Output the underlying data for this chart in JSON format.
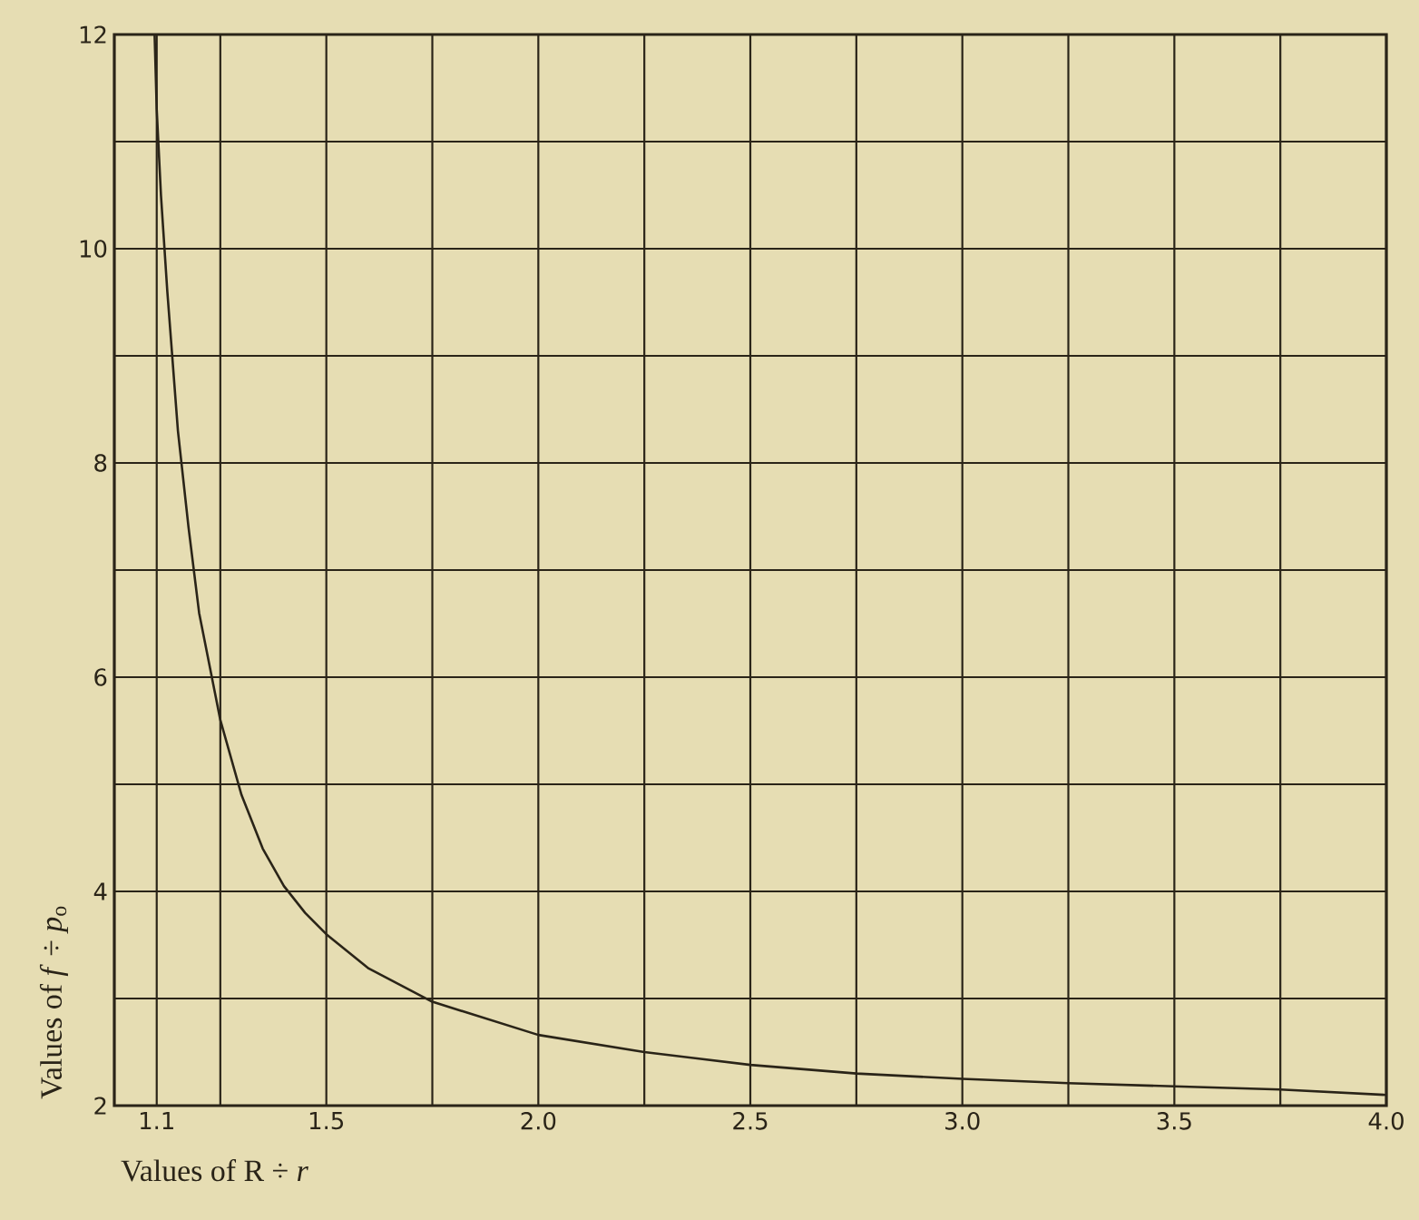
{
  "chart_data": {
    "type": "line",
    "xlabel": "Values of R ÷ *r*",
    "ylabel": "Values of *f* ÷ *p*$_{o}$",
    "x": [
      1.095,
      1.1,
      1.11,
      1.125,
      1.15,
      1.175,
      1.2,
      1.25,
      1.3,
      1.35,
      1.4,
      1.45,
      1.5,
      1.6,
      1.75,
      2.0,
      2.25,
      2.5,
      2.75,
      3.0,
      3.25,
      3.5,
      3.75,
      4.0
    ],
    "series": [
      {
        "color": "#2a2418",
        "values": [
          12,
          11.3,
          10.5,
          9.6,
          8.3,
          7.4,
          6.6,
          5.6,
          4.9,
          4.4,
          4.05,
          3.8,
          3.6,
          3.28,
          2.97,
          2.66,
          2.5,
          2.38,
          2.3,
          2.25,
          2.21,
          2.18,
          2.15,
          2.1
        ]
      }
    ],
    "xlim": [
      1.0,
      4.0
    ],
    "ylim": [
      2,
      12
    ],
    "xticks": [
      1.1,
      {
        "value": 1.25,
        "label": null
      },
      1.5,
      {
        "value": 1.75,
        "label": null
      },
      {
        "value": 2.0,
        "label": "2.0"
      },
      {
        "value": 2.25,
        "label": null
      },
      2.5,
      {
        "value": 2.75,
        "label": null
      },
      {
        "value": 3.0,
        "label": "3.0"
      },
      {
        "value": 3.25,
        "label": null
      },
      3.5,
      {
        "value": 3.75,
        "label": null
      },
      {
        "value": 4.0,
        "label": "4.0"
      }
    ],
    "yticks": [
      2,
      {
        "value": 3,
        "label": null
      },
      4,
      {
        "value": 5,
        "label": null
      },
      6,
      {
        "value": 7,
        "label": null
      },
      8,
      {
        "value": 9,
        "label": null
      },
      10,
      {
        "value": 11,
        "label": null
      },
      12
    ],
    "grid": true,
    "marker": "none",
    "line_style": "solid"
  }
}
